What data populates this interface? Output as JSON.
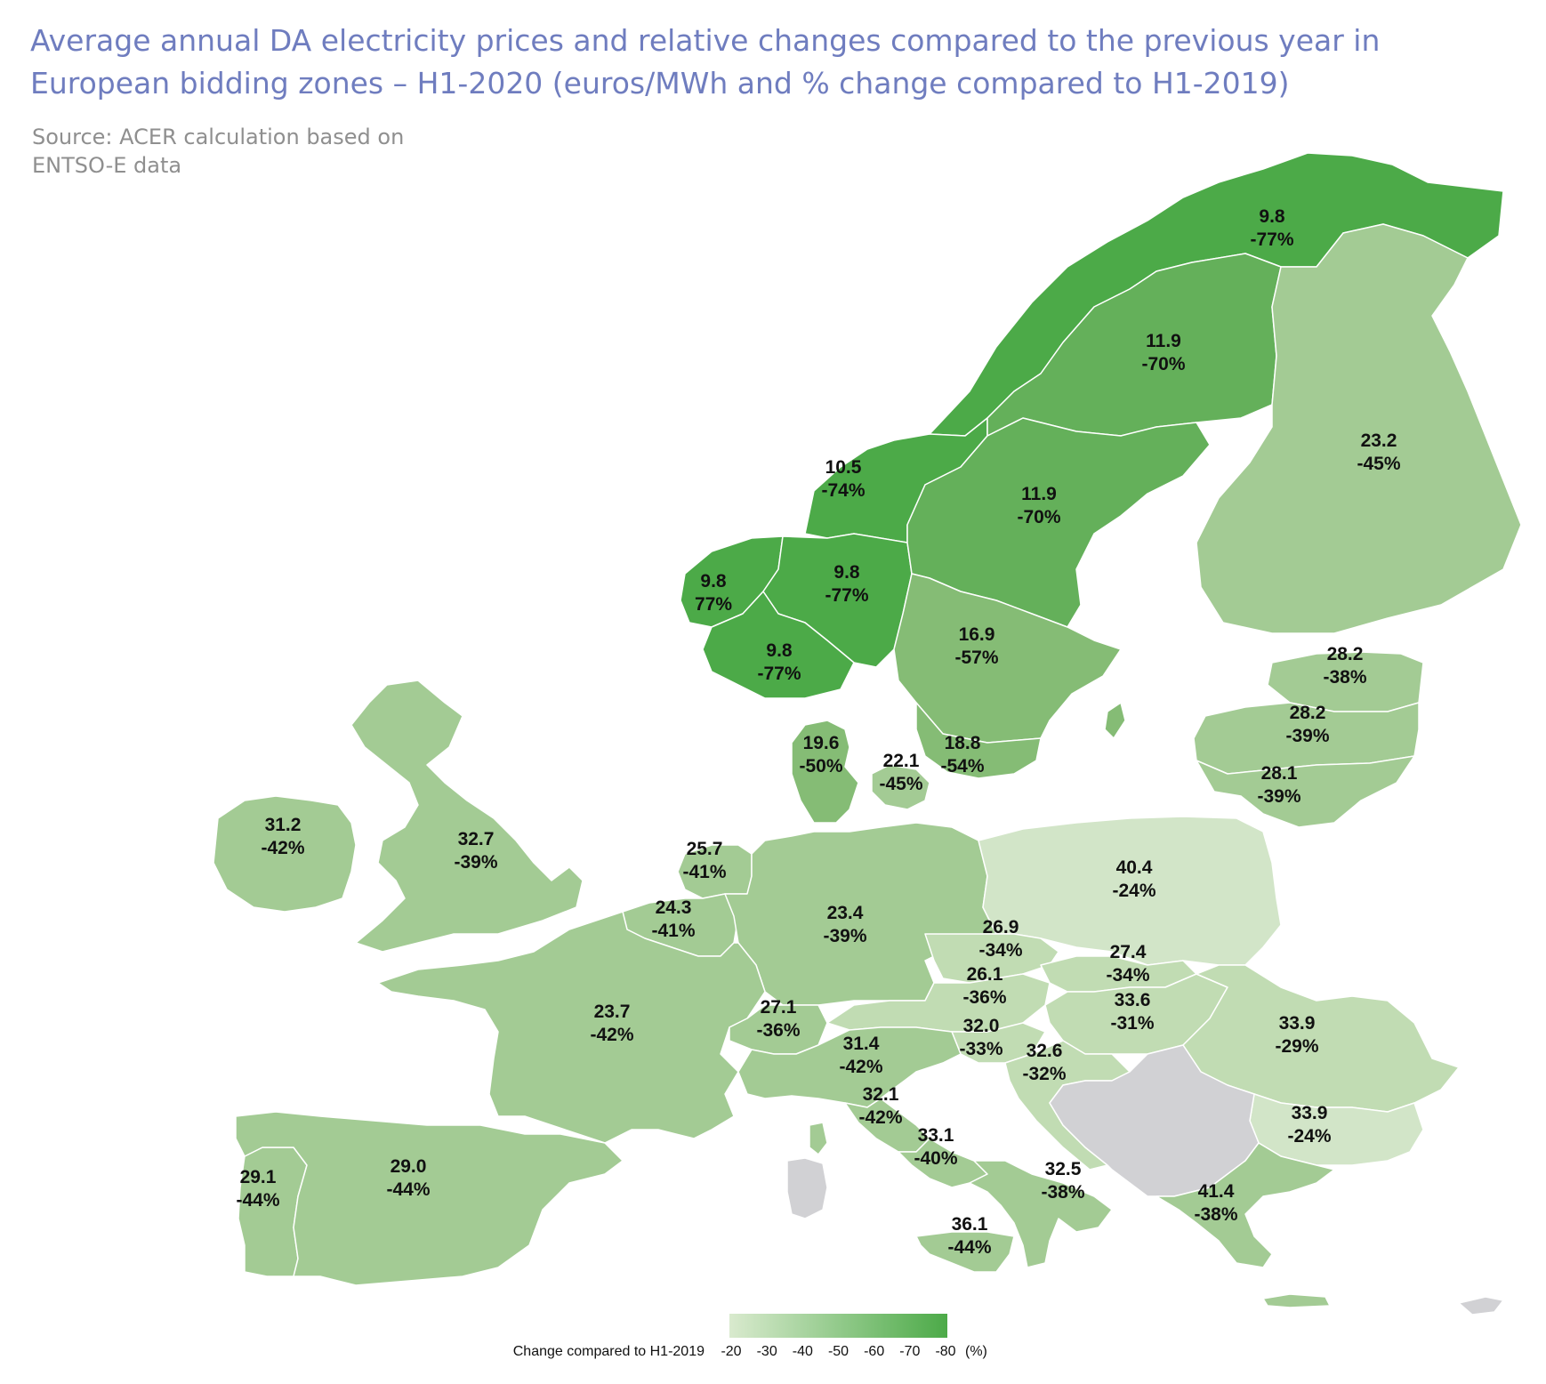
{
  "header": {
    "title_line1": "Average annual DA electricity prices and relative changes compared to the previous year in",
    "title_line2": "European bidding zones – H1-2020 (euros/MWh and % change compared to H1-2019)",
    "source_line1": "Source: ACER calculation based on",
    "source_line2": "ENTSO-E data"
  },
  "colors": {
    "title": "#6f7dbf",
    "source": "#8f8f8f",
    "no_data": "#d1d1d4",
    "border": "#ffffff",
    "scale_light": "#d7e8cf",
    "scale_dark": "#4caa48"
  },
  "zones": [
    {
      "id": "NO4",
      "price": "9.8",
      "change": "-77%"
    },
    {
      "id": "SE1",
      "price": "11.9",
      "change": "-70%"
    },
    {
      "id": "FI",
      "price": "23.2",
      "change": "-45%"
    },
    {
      "id": "NO3",
      "price": "10.5",
      "change": "-74%"
    },
    {
      "id": "SE2",
      "price": "11.9",
      "change": "-70%"
    },
    {
      "id": "NO5",
      "price": "9.8",
      "change": "77%"
    },
    {
      "id": "NO1",
      "price": "9.8",
      "change": "-77%"
    },
    {
      "id": "SE3",
      "price": "16.9",
      "change": "-57%"
    },
    {
      "id": "NO2",
      "price": "9.8",
      "change": "-77%"
    },
    {
      "id": "EE",
      "price": "28.2",
      "change": "-38%"
    },
    {
      "id": "LV",
      "price": "28.2",
      "change": "-39%"
    },
    {
      "id": "LT",
      "price": "28.1",
      "change": "-39%"
    },
    {
      "id": "DK1",
      "price": "19.6",
      "change": "-50%"
    },
    {
      "id": "DK2",
      "price": "22.1",
      "change": "-45%"
    },
    {
      "id": "SE4",
      "price": "18.8",
      "change": "-54%"
    },
    {
      "id": "IE",
      "price": "31.2",
      "change": "-42%"
    },
    {
      "id": "GB",
      "price": "32.7",
      "change": "-39%"
    },
    {
      "id": "NL",
      "price": "25.7",
      "change": "-41%"
    },
    {
      "id": "PL",
      "price": "40.4",
      "change": "-24%"
    },
    {
      "id": "BE",
      "price": "24.3",
      "change": "-41%"
    },
    {
      "id": "DE",
      "price": "23.4",
      "change": "-39%"
    },
    {
      "id": "CZ",
      "price": "26.9",
      "change": "-34%"
    },
    {
      "id": "SK",
      "price": "27.4",
      "change": "-34%"
    },
    {
      "id": "AT",
      "price": "26.1",
      "change": "-36%"
    },
    {
      "id": "HU",
      "price": "33.6",
      "change": "-31%"
    },
    {
      "id": "FR",
      "price": "23.7",
      "change": "-42%"
    },
    {
      "id": "CH",
      "price": "27.1",
      "change": "-36%"
    },
    {
      "id": "SI",
      "price": "32.0",
      "change": "-33%"
    },
    {
      "id": "RO",
      "price": "33.9",
      "change": "-29%"
    },
    {
      "id": "IT-N",
      "price": "31.4",
      "change": "-42%"
    },
    {
      "id": "HR",
      "price": "32.6",
      "change": "-32%"
    },
    {
      "id": "IT-CN",
      "price": "32.1",
      "change": "-42%"
    },
    {
      "id": "BG",
      "price": "33.9",
      "change": "-24%"
    },
    {
      "id": "IT-CS",
      "price": "33.1",
      "change": "-40%"
    },
    {
      "id": "PT",
      "price": "29.1",
      "change": "-44%"
    },
    {
      "id": "ES",
      "price": "29.0",
      "change": "-44%"
    },
    {
      "id": "IT-S",
      "price": "32.5",
      "change": "-38%"
    },
    {
      "id": "GR",
      "price": "41.4",
      "change": "-38%"
    },
    {
      "id": "IT-SICI",
      "price": "36.1",
      "change": "-44%"
    }
  ],
  "legend": {
    "label": "Change compared to H1-2019",
    "ticks": [
      "-20",
      "-30",
      "-40",
      "-50",
      "-60",
      "-70",
      "-80"
    ],
    "unit": "(%)"
  }
}
